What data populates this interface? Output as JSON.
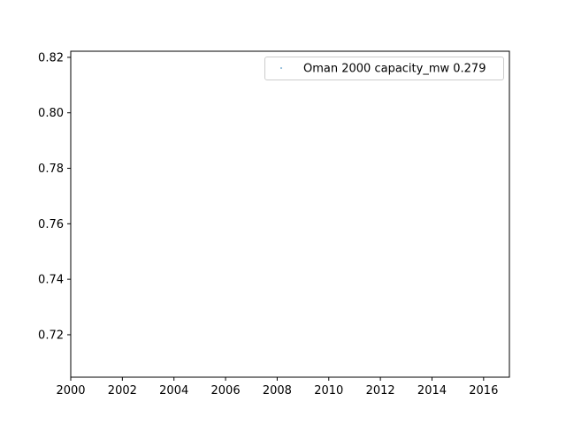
{
  "chart_data": {
    "type": "scatter",
    "title": "",
    "xlabel": "",
    "ylabel": "",
    "xlim": [
      2000,
      2017
    ],
    "ylim": [
      0.7047,
      0.8222
    ],
    "xticks": [
      2000,
      2002,
      2004,
      2006,
      2008,
      2010,
      2012,
      2014,
      2016
    ],
    "yticks": [
      0.72,
      0.74,
      0.76,
      0.78,
      0.8,
      0.82
    ],
    "ytick_labels": [
      "0.72",
      "0.74",
      "0.76",
      "0.78",
      "0.80",
      "0.82"
    ],
    "grid": false,
    "legend_position": "top-right",
    "series": [
      {
        "name": "Oman 2000 capacity_mw 0.279",
        "color": "#1f77b4",
        "marker": "point",
        "points": []
      }
    ]
  }
}
